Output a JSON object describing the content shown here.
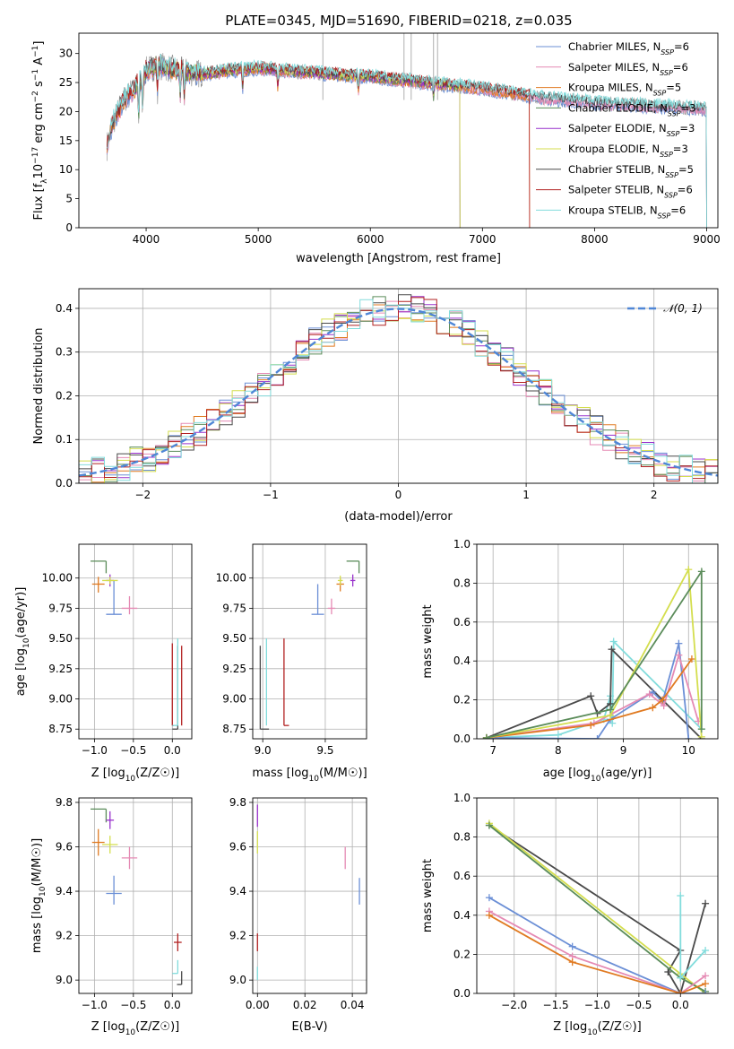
{
  "figure_title": "PLATE=0345, MJD=51690, FIBERID=0218, z=0.035",
  "palette": {
    "c0": "#6b8fd6",
    "c1": "#e58ab4",
    "c2": "#e07a21",
    "c3": "#5b8c5a",
    "c4": "#9932cc",
    "c5": "#d4de4e",
    "c6": "#4a4a4a",
    "c7": "#b22222",
    "c8": "#82dcdc",
    "grey": "#8a8a8a",
    "normal": "#4f86d6"
  },
  "chart_data": [
    {
      "id": "spectrum",
      "type": "line",
      "title": "PLATE=0345, MJD=51690, FIBERID=0218, z=0.035",
      "xlabel": "wavelength [Angstrom, rest frame]",
      "ylabel_main": "Flux [f",
      "ylabel_sub1": "λ",
      "ylabel_mid": "10",
      "ylabel_sup1": "−17",
      "ylabel_mid2": " erg cm",
      "ylabel_sup2": "−2",
      "ylabel_mid3": " s",
      "ylabel_sup3": "−1",
      "ylabel_mid4": " A",
      "ylabel_sup4": "−1",
      "ylabel_end": "]",
      "xlim": [
        3400,
        9100
      ],
      "ylim": [
        0,
        33.5
      ],
      "xticks": [
        4000,
        5000,
        6000,
        7000,
        8000,
        9000
      ],
      "yticks": [
        0,
        5,
        10,
        15,
        20,
        25,
        30
      ],
      "legend_position": "upper-right",
      "legend": [
        {
          "name": "Chabrier MILES",
          "nssp": "6",
          "color_key": "c0"
        },
        {
          "name": "Salpeter MILES",
          "nssp": "6",
          "color_key": "c1"
        },
        {
          "name": "Kroupa MILES",
          "nssp": "5",
          "color_key": "c2"
        },
        {
          "name": "Chabrier ELODIE",
          "nssp": "3",
          "color_key": "c3"
        },
        {
          "name": "Salpeter ELODIE",
          "nssp": "3",
          "color_key": "c4"
        },
        {
          "name": "Kroupa ELODIE",
          "nssp": "3",
          "color_key": "c5"
        },
        {
          "name": "Chabrier STELIB",
          "nssp": "5",
          "color_key": "c6"
        },
        {
          "name": "Salpeter STELIB",
          "nssp": "6",
          "color_key": "c7"
        },
        {
          "name": "Kroupa STELIB",
          "nssp": "6",
          "color_key": "c8"
        }
      ],
      "nssp_label": "N",
      "nssp_sub": "SSP",
      "continuum": [
        [
          3650,
          14
        ],
        [
          3700,
          18
        ],
        [
          3800,
          22
        ],
        [
          3900,
          24
        ],
        [
          4000,
          27
        ],
        [
          4100,
          28
        ],
        [
          4300,
          27
        ],
        [
          4500,
          26.5
        ],
        [
          4700,
          27
        ],
        [
          5000,
          27.5
        ],
        [
          5300,
          27
        ],
        [
          5600,
          26.5
        ],
        [
          6000,
          26
        ],
        [
          6500,
          25
        ],
        [
          7000,
          24
        ],
        [
          7500,
          22.5
        ],
        [
          8000,
          21.5
        ],
        [
          8500,
          21
        ],
        [
          9000,
          20.5
        ]
      ],
      "model_ranges": [
        {
          "color_key": "c0",
          "x": [
            3650,
            9000
          ]
        },
        {
          "color_key": "c1",
          "x": [
            3650,
            9000
          ]
        },
        {
          "color_key": "c2",
          "x": [
            3650,
            7420
          ]
        },
        {
          "color_key": "c3",
          "x": [
            3900,
            6800
          ]
        },
        {
          "color_key": "c4",
          "x": [
            3900,
            6800
          ]
        },
        {
          "color_key": "c5",
          "x": [
            3900,
            6800
          ]
        },
        {
          "color_key": "c6",
          "x": [
            3650,
            9000
          ]
        },
        {
          "color_key": "c7",
          "x": [
            3650,
            7420
          ]
        },
        {
          "color_key": "c8",
          "x": [
            3650,
            9000
          ]
        }
      ]
    },
    {
      "id": "residuals",
      "type": "histogram",
      "xlabel": "(data-model)/error",
      "ylabel": "Normed distribution",
      "xlim": [
        -2.5,
        2.5
      ],
      "ylim": [
        0,
        0.445
      ],
      "xticks": [
        -2,
        -1,
        0,
        1,
        2
      ],
      "yticks": [
        0.0,
        0.1,
        0.2,
        0.3,
        0.4
      ],
      "grid": true,
      "bin_width": 0.1,
      "legend_position": "upper-right",
      "legend_label": "𝒩(0, 1)",
      "series_color_keys": [
        "c0",
        "c1",
        "c2",
        "c3",
        "c4",
        "c5",
        "c6",
        "c7",
        "c8"
      ]
    },
    {
      "id": "age-vs-Z",
      "type": "errorbar",
      "xlabel_main": "Z [log",
      "xlabel_sub": "10",
      "xlabel_end": "(Z/Z☉)]",
      "ylabel": "age  [log10(age/yr)]",
      "ylabel_main": "age  [log",
      "ylabel_sub": "10",
      "ylabel_end": "(age/yr)]",
      "xlim": [
        -1.2,
        0.25
      ],
      "ylim": [
        8.67,
        10.28
      ],
      "xticks": [
        -1.0,
        -0.5,
        0.0
      ],
      "yticks": [
        8.75,
        9.0,
        9.25,
        9.5,
        9.75,
        10.0
      ],
      "grid": true,
      "points": [
        {
          "color_key": "c0",
          "x": -0.75,
          "y": 9.7,
          "xerr": [
            0.1,
            0.1
          ],
          "yerr": [
            0.0,
            0.28
          ]
        },
        {
          "color_key": "c1",
          "x": -0.55,
          "y": 9.75,
          "xerr": [
            0.1,
            0.1
          ],
          "yerr": [
            0.05,
            0.1
          ]
        },
        {
          "color_key": "c2",
          "x": -0.95,
          "y": 9.95,
          "xerr": [
            0.08,
            0.08
          ],
          "yerr": [
            0.07,
            0.06
          ]
        },
        {
          "color_key": "c3",
          "x": -0.85,
          "y": 10.14,
          "xerr": [
            0.2,
            0.0
          ],
          "yerr": [
            0.1,
            0.0
          ]
        },
        {
          "color_key": "c4",
          "x": -0.8,
          "y": 9.98,
          "xerr": [
            0.05,
            0.05
          ],
          "yerr": [
            0.05,
            0.05
          ]
        },
        {
          "color_key": "c5",
          "x": -0.8,
          "y": 9.98,
          "xerr": [
            0.1,
            0.1
          ],
          "yerr": [
            0.03,
            0.03
          ]
        },
        {
          "color_key": "c6",
          "x": 0.07,
          "y": 8.75,
          "xerr": [
            0.07,
            0.0
          ],
          "yerr": [
            0.0,
            0.69
          ]
        },
        {
          "color_key": "c7",
          "x": 0.0,
          "y": 8.78,
          "xerr": [
            0.0,
            0.02
          ],
          "yerr": [
            0.0,
            0.68
          ]
        },
        {
          "color_key": "c8",
          "x": 0.07,
          "y": 8.78,
          "xerr": [
            0.07,
            0.0
          ],
          "yerr": [
            0.0,
            0.72
          ]
        },
        {
          "color_key": "c7",
          "x": 0.12,
          "y": 8.78,
          "xerr": [
            0.0,
            0.0
          ],
          "yerr": [
            0.0,
            0.66
          ]
        }
      ]
    },
    {
      "id": "age-vs-mass",
      "type": "errorbar",
      "xlabel_main": "mass [log",
      "xlabel_sub": "10",
      "xlabel_end": "(M/M☉)]",
      "xlim": [
        8.92,
        9.83
      ],
      "ylim": [
        8.67,
        10.28
      ],
      "xticks": [
        9.0,
        9.5
      ],
      "yticks": [
        8.75,
        9.0,
        9.25,
        9.5,
        9.75,
        10.0
      ],
      "grid": true,
      "points": [
        {
          "color_key": "c0",
          "x": 9.44,
          "y": 9.7,
          "xerr": [
            0.05,
            0.05
          ],
          "yerr": [
            0.0,
            0.25
          ]
        },
        {
          "color_key": "c1",
          "x": 9.55,
          "y": 9.75,
          "xerr": [
            0.03,
            0.03
          ],
          "yerr": [
            0.05,
            0.08
          ]
        },
        {
          "color_key": "c2",
          "x": 9.62,
          "y": 9.95,
          "xerr": [
            0.03,
            0.03
          ],
          "yerr": [
            0.06,
            0.05
          ]
        },
        {
          "color_key": "c3",
          "x": 9.77,
          "y": 10.14,
          "xerr": [
            0.1,
            0.0
          ],
          "yerr": [
            0.1,
            0.0
          ]
        },
        {
          "color_key": "c4",
          "x": 9.72,
          "y": 9.98,
          "xerr": [
            0.02,
            0.02
          ],
          "yerr": [
            0.05,
            0.05
          ]
        },
        {
          "color_key": "c5",
          "x": 9.62,
          "y": 9.98,
          "xerr": [
            0.02,
            0.02
          ],
          "yerr": [
            0.04,
            0.04
          ]
        },
        {
          "color_key": "c6",
          "x": 8.98,
          "y": 8.75,
          "xerr": [
            0.0,
            0.07
          ],
          "yerr": [
            0.0,
            0.69
          ]
        },
        {
          "color_key": "c7",
          "x": 9.17,
          "y": 8.78,
          "xerr": [
            0.0,
            0.04
          ],
          "yerr": [
            0.0,
            0.72
          ]
        },
        {
          "color_key": "c8",
          "x": 9.03,
          "y": 8.78,
          "xerr": [
            0.0,
            0.0
          ],
          "yerr": [
            0.0,
            0.72
          ]
        }
      ]
    },
    {
      "id": "weight-vs-age",
      "type": "line",
      "xlabel_main": "age  [log",
      "xlabel_sub": "10",
      "xlabel_end": "(age/yr)]",
      "ylabel": "mass weight",
      "xlim": [
        6.75,
        10.45
      ],
      "ylim": [
        0,
        1.0
      ],
      "xticks": [
        7,
        8,
        9,
        10
      ],
      "yticks": [
        0.0,
        0.2,
        0.4,
        0.6,
        0.8,
        1.0
      ],
      "grid": true,
      "series": [
        {
          "color_key": "c8",
          "x": [
            6.9,
            8.0,
            8.7,
            8.8,
            8.83,
            8.85,
            10.2
          ],
          "y": [
            0.005,
            0.02,
            0.1,
            0.22,
            0.08,
            0.5,
            0.05
          ]
        },
        {
          "color_key": "c6",
          "x": [
            6.9,
            8.5,
            8.6,
            8.8,
            8.82,
            10.2
          ],
          "y": [
            0.005,
            0.22,
            0.13,
            0.18,
            0.46,
            0.0
          ]
        },
        {
          "color_key": "c0",
          "x": [
            6.9,
            8.6,
            8.8,
            9.45,
            9.6,
            9.85,
            10.0
          ],
          "y": [
            0.005,
            0.0,
            0.1,
            0.24,
            0.19,
            0.49,
            0.0
          ]
        },
        {
          "color_key": "c1",
          "x": [
            6.9,
            8.55,
            9.4,
            9.62,
            9.85,
            10.15
          ],
          "y": [
            0.005,
            0.08,
            0.23,
            0.17,
            0.43,
            0.09
          ]
        },
        {
          "color_key": "c2",
          "x": [
            6.9,
            8.5,
            9.45,
            9.6,
            10.05
          ],
          "y": [
            0.005,
            0.07,
            0.16,
            0.2,
            0.41
          ]
        },
        {
          "color_key": "c5",
          "x": [
            6.9,
            8.8,
            10.0,
            10.2
          ],
          "y": [
            0.005,
            0.12,
            0.87,
            0.01
          ]
        },
        {
          "color_key": "c3",
          "x": [
            6.9,
            8.8,
            10.2,
            10.2
          ],
          "y": [
            0.005,
            0.15,
            0.86,
            0.05
          ]
        }
      ]
    },
    {
      "id": "mass-vs-Z",
      "type": "errorbar",
      "xlabel_main": "Z [log",
      "xlabel_sub": "10",
      "xlabel_end": "(Z/Z☉)]",
      "ylabel_main": "mass [log",
      "ylabel_sub": "10",
      "ylabel_end": "(M/M☉)]",
      "xlim": [
        -1.2,
        0.25
      ],
      "ylim": [
        8.94,
        9.82
      ],
      "xticks": [
        -1.0,
        -0.5,
        0.0
      ],
      "yticks": [
        9.0,
        9.2,
        9.4,
        9.6,
        9.8
      ],
      "grid": true,
      "points": [
        {
          "color_key": "c0",
          "x": -0.75,
          "y": 9.39,
          "xerr": [
            0.1,
            0.1
          ],
          "yerr": [
            0.05,
            0.08
          ]
        },
        {
          "color_key": "c1",
          "x": -0.55,
          "y": 9.55,
          "xerr": [
            0.1,
            0.1
          ],
          "yerr": [
            0.05,
            0.05
          ]
        },
        {
          "color_key": "c2",
          "x": -0.95,
          "y": 9.62,
          "xerr": [
            0.08,
            0.08
          ],
          "yerr": [
            0.06,
            0.06
          ]
        },
        {
          "color_key": "c3",
          "x": -0.85,
          "y": 9.77,
          "xerr": [
            0.2,
            0.0
          ],
          "yerr": [
            0.06,
            0.0
          ]
        },
        {
          "color_key": "c4",
          "x": -0.8,
          "y": 9.72,
          "xerr": [
            0.05,
            0.05
          ],
          "yerr": [
            0.04,
            0.04
          ]
        },
        {
          "color_key": "c5",
          "x": -0.8,
          "y": 9.61,
          "xerr": [
            0.1,
            0.1
          ],
          "yerr": [
            0.04,
            0.04
          ]
        },
        {
          "color_key": "c6",
          "x": 0.12,
          "y": 8.98,
          "xerr": [
            0.06,
            0.0
          ],
          "yerr": [
            0.0,
            0.06
          ]
        },
        {
          "color_key": "c7",
          "x": 0.07,
          "y": 9.17,
          "xerr": [
            0.05,
            0.05
          ],
          "yerr": [
            0.04,
            0.04
          ]
        },
        {
          "color_key": "c8",
          "x": 0.07,
          "y": 9.03,
          "xerr": [
            0.07,
            0.0
          ],
          "yerr": [
            0.0,
            0.06
          ]
        }
      ]
    },
    {
      "id": "mass-vs-EBV",
      "type": "errorbar",
      "xlabel": "E(B-V)",
      "xlim": [
        -0.002,
        0.046
      ],
      "ylim": [
        8.94,
        9.82
      ],
      "xticks": [
        0.0,
        0.02,
        0.04
      ],
      "yticks": [
        9.0,
        9.2,
        9.4,
        9.6,
        9.8
      ],
      "grid": true,
      "points": [
        {
          "color_key": "c0",
          "x": 0.043,
          "y": 9.4,
          "xerr": [
            0.0,
            0.0
          ],
          "yerr": [
            0.06,
            0.06
          ]
        },
        {
          "color_key": "c1",
          "x": 0.037,
          "y": 9.55,
          "xerr": [
            0.0,
            0.0
          ],
          "yerr": [
            0.05,
            0.05
          ]
        },
        {
          "color_key": "c5",
          "x": 0.0,
          "y": 9.62,
          "xerr": [
            0.0,
            0.0
          ],
          "yerr": [
            0.05,
            0.05
          ]
        },
        {
          "color_key": "c4",
          "x": 0.0,
          "y": 9.74,
          "xerr": [
            0.0,
            0.0
          ],
          "yerr": [
            0.05,
            0.05
          ]
        },
        {
          "color_key": "c7",
          "x": 0.0,
          "y": 9.17,
          "xerr": [
            0.0,
            0.0
          ],
          "yerr": [
            0.04,
            0.04
          ]
        },
        {
          "color_key": "c8",
          "x": 0.0,
          "y": 9.03,
          "xerr": [
            0.0,
            0.0
          ],
          "yerr": [
            0.03,
            0.03
          ]
        }
      ]
    },
    {
      "id": "weight-vs-Z",
      "type": "line",
      "xlabel_main": "Z [log",
      "xlabel_sub": "10",
      "xlabel_end": "(Z/Z☉)]",
      "ylabel": "mass weight",
      "xlim": [
        -2.45,
        0.45
      ],
      "ylim": [
        0,
        1.0
      ],
      "xticks": [
        -2.0,
        -1.5,
        -1.0,
        -0.5,
        0.0
      ],
      "yticks": [
        0.0,
        0.2,
        0.4,
        0.6,
        0.8,
        1.0
      ],
      "grid": true,
      "series": [
        {
          "color_key": "c6",
          "x": [
            -2.3,
            0.0,
            -0.15,
            0.0,
            0.3
          ],
          "y": [
            0.86,
            0.22,
            0.11,
            0.0,
            0.46
          ]
        },
        {
          "color_key": "c5",
          "x": [
            -2.3,
            0.0,
            0.3
          ],
          "y": [
            0.87,
            0.1,
            0.0
          ]
        },
        {
          "color_key": "c3",
          "x": [
            -2.3,
            0.0,
            0.3
          ],
          "y": [
            0.86,
            0.08,
            0.01
          ]
        },
        {
          "color_key": "c0",
          "x": [
            -2.3,
            -1.3,
            0.0,
            0.3
          ],
          "y": [
            0.49,
            0.24,
            0.0,
            0.0
          ]
        },
        {
          "color_key": "c1",
          "x": [
            -2.3,
            -1.3,
            0.0,
            0.3
          ],
          "y": [
            0.42,
            0.19,
            0.0,
            0.09
          ]
        },
        {
          "color_key": "c2",
          "x": [
            -2.3,
            -1.3,
            0.0,
            0.3
          ],
          "y": [
            0.4,
            0.16,
            0.0,
            0.05
          ]
        },
        {
          "color_key": "c8",
          "x": [
            0.0,
            0.0,
            0.3
          ],
          "y": [
            0.5,
            0.08,
            0.22
          ]
        }
      ]
    }
  ]
}
